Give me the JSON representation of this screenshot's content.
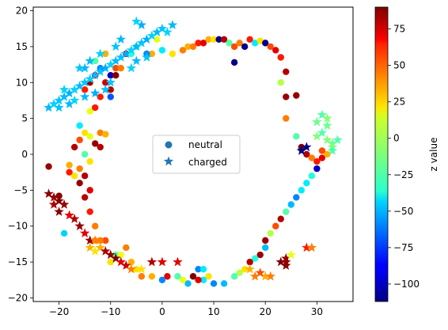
{
  "chart_data": {
    "type": "scatter",
    "title": "",
    "xlabel": "",
    "ylabel": "",
    "xlim": [
      -25,
      37
    ],
    "ylim": [
      -20.5,
      20.5
    ],
    "xticks": [
      -20,
      -10,
      0,
      10,
      20,
      30
    ],
    "yticks": [
      -20,
      -15,
      -10,
      -5,
      0,
      5,
      10,
      15,
      20
    ],
    "grid": false,
    "legend": {
      "location": "center",
      "entries": [
        {
          "label": "neutral",
          "marker": "circle",
          "color": "#1f77b4"
        },
        {
          "label": "charged",
          "marker": "star",
          "color": "#1f77b4"
        }
      ]
    },
    "colorbar": {
      "label": "z value",
      "colormap": "jet",
      "range": [
        -112,
        90
      ],
      "ticks": [
        75,
        50,
        25,
        0,
        -25,
        -50,
        -75,
        -100
      ]
    },
    "series": [
      {
        "name": "neutral",
        "marker": "circle",
        "points": [
          [
            -22,
            -1.7,
            85
          ],
          [
            -20,
            -5.8,
            88
          ],
          [
            -19,
            -11,
            -45
          ],
          [
            -18,
            -2.5,
            60
          ],
          [
            -18,
            -1.5,
            30
          ],
          [
            -17,
            -3,
            20
          ],
          [
            -17,
            1,
            80
          ],
          [
            -16,
            2,
            50
          ],
          [
            -16,
            -4,
            85
          ],
          [
            -15,
            -3,
            80
          ],
          [
            -15,
            -6,
            78
          ],
          [
            -14,
            -5,
            70
          ],
          [
            -14,
            -8,
            60
          ],
          [
            -13,
            -10,
            40
          ],
          [
            -13,
            -12,
            30
          ],
          [
            -16,
            4,
            -40
          ],
          [
            -15,
            3,
            20
          ],
          [
            -14,
            2.5,
            10
          ],
          [
            -13,
            1.5,
            85
          ],
          [
            -12,
            3,
            40
          ],
          [
            -12,
            1,
            80
          ],
          [
            -11,
            2.8,
            30
          ],
          [
            -14,
            6,
            10
          ],
          [
            -13,
            6.5,
            60
          ],
          [
            -15,
            0,
            -20
          ],
          [
            -16,
            -2,
            40
          ],
          [
            -14,
            -1,
            20
          ],
          [
            -15,
            9,
            60
          ],
          [
            -14,
            10,
            85
          ],
          [
            -13,
            11,
            70
          ],
          [
            -12,
            8,
            60
          ],
          [
            -11,
            10,
            75
          ],
          [
            -10,
            9,
            80
          ],
          [
            -9,
            12,
            50
          ],
          [
            -8,
            12,
            40
          ],
          [
            -7,
            14,
            70
          ],
          [
            -6,
            14,
            -30
          ],
          [
            -5,
            15,
            -20
          ],
          [
            -10,
            11,
            -100
          ],
          [
            -9,
            11,
            90
          ],
          [
            -10,
            8,
            -70
          ],
          [
            -2,
            14,
            30
          ],
          [
            0,
            14.5,
            -40
          ],
          [
            2,
            14,
            20
          ],
          [
            4,
            14.5,
            40
          ],
          [
            5,
            15,
            30
          ],
          [
            6,
            15,
            40
          ],
          [
            7,
            15.5,
            60
          ],
          [
            8,
            15.5,
            70
          ],
          [
            9,
            16,
            30
          ],
          [
            10,
            16,
            20
          ],
          [
            11,
            16,
            -110
          ],
          [
            12,
            16,
            80
          ],
          [
            13,
            15.5,
            -20
          ],
          [
            14,
            15,
            50
          ],
          [
            15,
            15.5,
            40
          ],
          [
            16,
            15,
            -110
          ],
          [
            17,
            16,
            60
          ],
          [
            18,
            15.5,
            -40
          ],
          [
            19,
            15.8,
            20
          ],
          [
            20,
            15.5,
            -110
          ],
          [
            21,
            15,
            50
          ],
          [
            22,
            14.5,
            70
          ],
          [
            23,
            13.5,
            60
          ],
          [
            24,
            11.5,
            80
          ],
          [
            23,
            10,
            0
          ],
          [
            24,
            8,
            85
          ],
          [
            14,
            12.8,
            -110
          ],
          [
            26,
            8.2,
            85
          ],
          [
            24,
            5,
            40
          ],
          [
            26,
            2.5,
            -20
          ],
          [
            27,
            1,
            90
          ],
          [
            28,
            0,
            80
          ],
          [
            29,
            -0.5,
            40
          ],
          [
            30,
            -1,
            60
          ],
          [
            31,
            -0.5,
            70
          ],
          [
            32,
            0,
            30
          ],
          [
            31,
            0.5,
            50
          ],
          [
            30,
            -2,
            -100
          ],
          [
            29,
            -3,
            -30
          ],
          [
            28,
            -4,
            -40
          ],
          [
            27,
            -5,
            -40
          ],
          [
            26,
            -6,
            -60
          ],
          [
            25,
            -7,
            -50
          ],
          [
            24,
            -8,
            -20
          ],
          [
            23,
            -9,
            80
          ],
          [
            22,
            -10,
            50
          ],
          [
            21,
            -11,
            0
          ],
          [
            20,
            -12,
            85
          ],
          [
            20,
            -13,
            -50
          ],
          [
            19,
            -14,
            85
          ],
          [
            18,
            -14.5,
            -30
          ],
          [
            17,
            -15,
            80
          ],
          [
            16,
            -16,
            20
          ],
          [
            15,
            -16.5,
            0
          ],
          [
            14,
            -17,
            -20
          ],
          [
            12,
            -18,
            -50
          ],
          [
            10,
            -18,
            -60
          ],
          [
            9,
            -17,
            20
          ],
          [
            8,
            -17.5,
            -40
          ],
          [
            7,
            -17.5,
            70
          ],
          [
            6,
            -17,
            90
          ],
          [
            5,
            -18,
            -50
          ],
          [
            4,
            -17.5,
            10
          ],
          [
            3,
            -17,
            -20
          ],
          [
            1,
            -17,
            70
          ],
          [
            0,
            -17.5,
            -60
          ],
          [
            -2,
            -17,
            30
          ],
          [
            -4,
            -17,
            40
          ],
          [
            -5,
            -16,
            20
          ],
          [
            -10,
            -15,
            20
          ],
          [
            -9,
            -14,
            -20
          ],
          [
            -8,
            -14,
            10
          ],
          [
            -7,
            -13,
            40
          ],
          [
            -6,
            -15,
            30
          ],
          [
            -11,
            -12,
            50
          ],
          [
            -12,
            -12,
            40
          ],
          [
            7,
            -16,
            -60
          ],
          [
            8,
            -16,
            -40
          ],
          [
            -3,
            14,
            -60
          ],
          [
            -1,
            16,
            10
          ],
          [
            -13,
            13,
            -20
          ],
          [
            -12,
            12,
            -60
          ],
          [
            -11,
            14,
            30
          ]
        ]
      },
      {
        "name": "charged",
        "marker": "star",
        "points": [
          [
            -22,
            -5.5,
            88
          ],
          [
            -21,
            -6,
            85
          ],
          [
            -20,
            -6.5,
            90
          ],
          [
            -21,
            -7,
            80
          ],
          [
            -19,
            -7,
            85
          ],
          [
            -20,
            -8,
            88
          ],
          [
            -18,
            -8.5,
            70
          ],
          [
            -17,
            -9,
            80
          ],
          [
            -16,
            -10,
            85
          ],
          [
            -15,
            -11,
            70
          ],
          [
            -14,
            -12,
            85
          ],
          [
            -13,
            -12,
            40
          ],
          [
            -12,
            -13,
            30
          ],
          [
            -11,
            -13.5,
            80
          ],
          [
            -10,
            -14,
            85
          ],
          [
            -9,
            -14.5,
            90
          ],
          [
            -8,
            -15,
            70
          ],
          [
            -7,
            -15.5,
            75
          ],
          [
            -6,
            -16,
            40
          ],
          [
            -4,
            -16,
            20
          ],
          [
            -2,
            -15,
            80
          ],
          [
            0,
            -15,
            70
          ],
          [
            3,
            -15,
            70
          ],
          [
            -14,
            -13,
            30
          ],
          [
            -13,
            -13.5,
            20
          ],
          [
            -22,
            6.5,
            -50
          ],
          [
            -21,
            7,
            -45
          ],
          [
            -20,
            7.5,
            -48
          ],
          [
            -19,
            8,
            -50
          ],
          [
            -18,
            8.5,
            -52
          ],
          [
            -17,
            9,
            -45
          ],
          [
            -16,
            9.5,
            -50
          ],
          [
            -15,
            10,
            -48
          ],
          [
            -14,
            10.5,
            -45
          ],
          [
            -13,
            11,
            -50
          ],
          [
            -12,
            11.5,
            -48
          ],
          [
            -11,
            12,
            -52
          ],
          [
            -10,
            12.5,
            -45
          ],
          [
            -9,
            13,
            -50
          ],
          [
            -8,
            13.5,
            -48
          ],
          [
            -7,
            14,
            -52
          ],
          [
            -6,
            14.5,
            -45
          ],
          [
            -5,
            15,
            -50
          ],
          [
            -4,
            15.5,
            -48
          ],
          [
            -3,
            16,
            -52
          ],
          [
            -2,
            16.5,
            -45
          ],
          [
            -1,
            17,
            -50
          ],
          [
            0,
            17.5,
            -48
          ],
          [
            1,
            17,
            -45
          ],
          [
            2,
            18,
            -50
          ],
          [
            -4,
            18,
            -52
          ],
          [
            -5,
            18.5,
            -45
          ],
          [
            -8,
            16,
            -50
          ],
          [
            -9,
            15,
            -48
          ],
          [
            -12,
            14,
            -45
          ],
          [
            -14,
            13,
            -50
          ],
          [
            -16,
            12,
            -48
          ],
          [
            -18,
            7,
            -50
          ],
          [
            -20,
            6.5,
            -48
          ],
          [
            -17,
            7.5,
            -45
          ],
          [
            -15,
            8,
            -50
          ],
          [
            -13,
            8.5,
            -52
          ],
          [
            -11,
            9,
            -48
          ],
          [
            -19,
            9,
            -45
          ],
          [
            -15,
            12,
            -50
          ],
          [
            -10,
            10,
            -48
          ],
          [
            -6,
            12,
            -45
          ],
          [
            -5,
            13,
            -50
          ],
          [
            -3,
            13.5,
            -48
          ],
          [
            27,
            0.5,
            -110
          ],
          [
            28,
            1,
            -110
          ],
          [
            30,
            2.5,
            -10
          ],
          [
            31,
            3,
            -20
          ],
          [
            32,
            2,
            -10
          ],
          [
            33,
            1.5,
            -15
          ],
          [
            34,
            2,
            -20
          ],
          [
            33,
            1,
            -10
          ],
          [
            32,
            4,
            -15
          ],
          [
            31,
            5.5,
            -20
          ],
          [
            32,
            5,
            -10
          ],
          [
            30,
            4.5,
            -15
          ],
          [
            33,
            0.5,
            -20
          ],
          [
            24,
            -15,
            85
          ],
          [
            24,
            -15.5,
            88
          ],
          [
            23,
            -15,
            90
          ],
          [
            24,
            -14.5,
            85
          ],
          [
            28,
            -13,
            60
          ],
          [
            29,
            -13,
            40
          ],
          [
            25,
            -14,
            10
          ],
          [
            20,
            -17,
            30
          ],
          [
            21,
            -17,
            40
          ],
          [
            19,
            -16.5,
            50
          ],
          [
            18,
            -17,
            40
          ],
          [
            17,
            -16,
            30
          ]
        ]
      }
    ]
  }
}
